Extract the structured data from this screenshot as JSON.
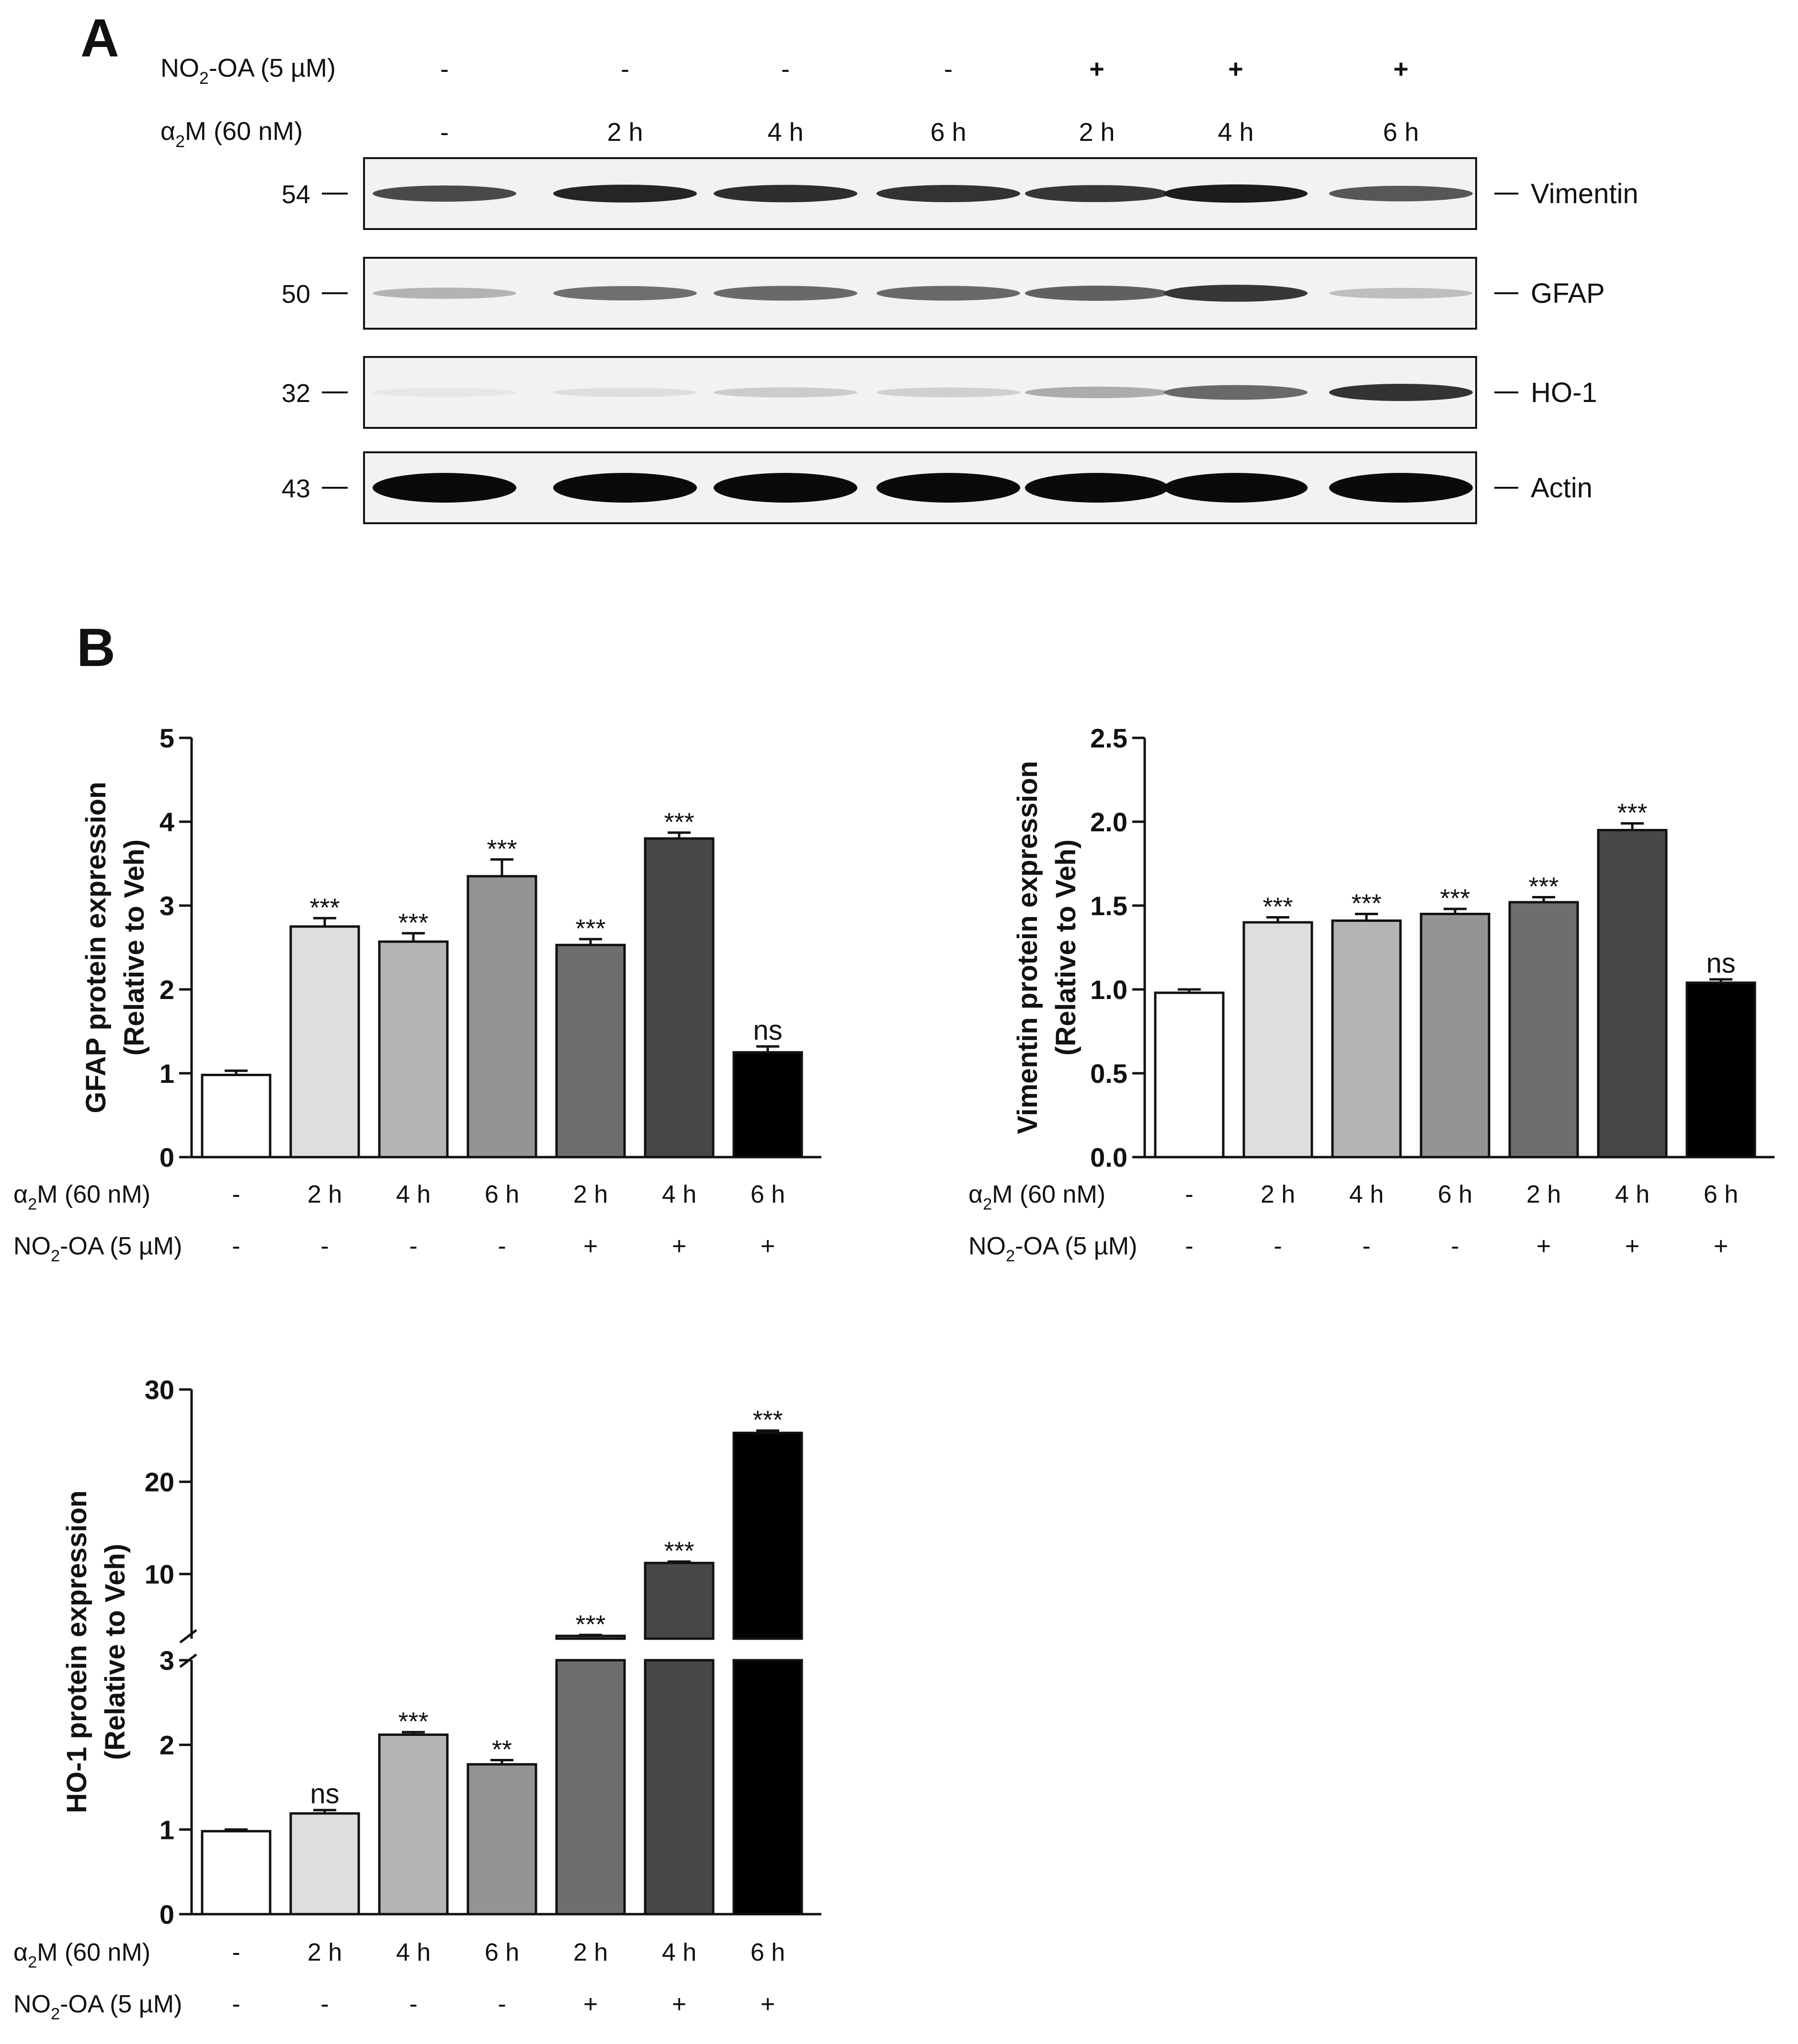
{
  "panel_a": {
    "label": "A",
    "treatment_rows": [
      {
        "label_main": "NO",
        "label_sub": "2",
        "label_rest": "-OA (5 µM)",
        "values": [
          "-",
          "-",
          "-",
          "-",
          "+",
          "+",
          "+"
        ]
      },
      {
        "label_main": "α",
        "label_sub": "2",
        "label_rest": "M (60 nM)",
        "values": [
          "-",
          "2 h",
          "4 h",
          "6 h",
          "2 h",
          "4 h",
          "6 h"
        ]
      }
    ],
    "blots": [
      {
        "mw": "54",
        "name": "Vimentin",
        "intensity": [
          0.72,
          0.88,
          0.84,
          0.82,
          0.8,
          0.92,
          0.66
        ]
      },
      {
        "mw": "50",
        "name": "GFAP",
        "intensity": [
          0.25,
          0.55,
          0.58,
          0.58,
          0.62,
          0.8,
          0.2
        ]
      },
      {
        "mw": "32",
        "name": "HO-1",
        "intensity": [
          0.02,
          0.06,
          0.14,
          0.12,
          0.28,
          0.58,
          0.82
        ]
      },
      {
        "mw": "43",
        "name": "Actin",
        "intensity": [
          1.0,
          1.0,
          1.0,
          1.0,
          1.0,
          1.0,
          1.0
        ]
      }
    ]
  },
  "panel_b": {
    "label": "B",
    "row_labels": {
      "a2m": {
        "main": "α",
        "sub": "2",
        "rest": "M (60 nM)"
      },
      "no2oa": {
        "main": "NO",
        "sub": "2",
        "rest": "-OA (5 µM)"
      }
    }
  },
  "colors": {
    "bar_fills": [
      "#ffffff",
      "#dedede",
      "#b4b4b4",
      "#949494",
      "#6e6e6e",
      "#484848",
      "#000000"
    ],
    "ink": "#111111"
  },
  "chart_data": [
    {
      "type": "bar",
      "ylabel_line1": "GFAP protein expression",
      "ylabel_line2": "(Relative to Veh)",
      "ylim": [
        0,
        5
      ],
      "yticks": [
        "0",
        "1",
        "2",
        "3",
        "4",
        "5"
      ],
      "a2m_row": [
        "-",
        "2 h",
        "4 h",
        "6 h",
        "2 h",
        "4 h",
        "6 h"
      ],
      "no2oa_row": [
        "-",
        "-",
        "-",
        "-",
        "+",
        "+",
        "+"
      ],
      "values": [
        0.98,
        2.75,
        2.57,
        3.35,
        2.53,
        3.8,
        1.25
      ],
      "errors": [
        0.05,
        0.1,
        0.1,
        0.2,
        0.07,
        0.07,
        0.07
      ],
      "significance": [
        "",
        "***",
        "***",
        "***",
        "***",
        "***",
        "ns"
      ]
    },
    {
      "type": "bar",
      "ylabel_line1": "Vimentin protein expression",
      "ylabel_line2": "(Relative to Veh)",
      "ylim": [
        0,
        2.5
      ],
      "yticks": [
        "0.0",
        "0.5",
        "1.0",
        "1.5",
        "2.0",
        "2.5"
      ],
      "a2m_row": [
        "-",
        "2 h",
        "4 h",
        "6 h",
        "2 h",
        "4 h",
        "6 h"
      ],
      "no2oa_row": [
        "-",
        "-",
        "-",
        "-",
        "+",
        "+",
        "+"
      ],
      "values": [
        0.98,
        1.4,
        1.41,
        1.45,
        1.52,
        1.95,
        1.04
      ],
      "errors": [
        0.02,
        0.03,
        0.04,
        0.03,
        0.03,
        0.04,
        0.02
      ],
      "significance": [
        "",
        "***",
        "***",
        "***",
        "***",
        "***",
        "ns"
      ]
    },
    {
      "type": "bar",
      "ylabel_line1": "HO-1 protein expression",
      "ylabel_line2": "(Relative to Veh)",
      "axis_break": {
        "lower": [
          0,
          3
        ],
        "upper": [
          3,
          30
        ]
      },
      "yticks_lower": [
        "0",
        "1",
        "2",
        "3"
      ],
      "yticks_upper": [
        "10",
        "20",
        "30"
      ],
      "a2m_row": [
        "-",
        "2 h",
        "4 h",
        "6 h",
        "2 h",
        "4 h",
        "6 h"
      ],
      "no2oa_row": [
        "-",
        "-",
        "-",
        "-",
        "+",
        "+",
        "+"
      ],
      "values": [
        0.98,
        1.19,
        2.12,
        1.77,
        3.3,
        11.2,
        25.3
      ],
      "errors": [
        0.02,
        0.04,
        0.03,
        0.05,
        0.1,
        0.15,
        0.25
      ],
      "significance": [
        "",
        "ns",
        "***",
        "**",
        "***",
        "***",
        "***"
      ]
    }
  ]
}
